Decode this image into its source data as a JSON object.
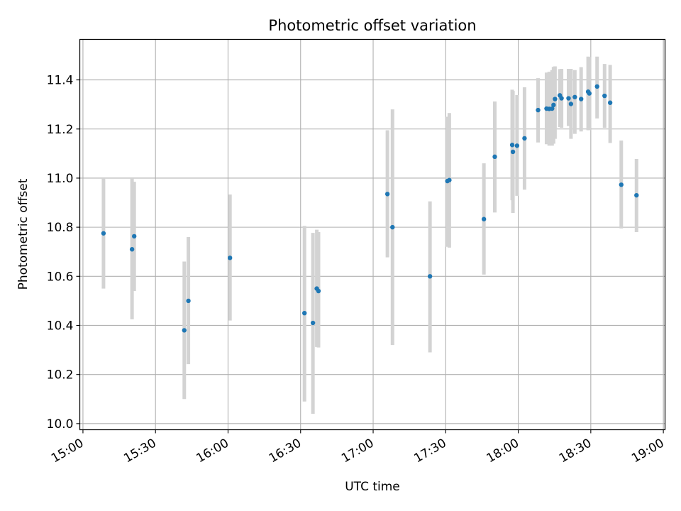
{
  "chart_data": {
    "type": "scatter",
    "title": "Photometric offset variation",
    "xlabel": "UTC time",
    "ylabel": "Photometric offset",
    "xlim_minutes": [
      -1.3,
      240.7
    ],
    "ylim": [
      9.975,
      11.565
    ],
    "x_ticks": [
      {
        "minutes": 0,
        "label": "15:00"
      },
      {
        "minutes": 30,
        "label": "15:30"
      },
      {
        "minutes": 60,
        "label": "16:00"
      },
      {
        "minutes": 90,
        "label": "16:30"
      },
      {
        "minutes": 120,
        "label": "17:00"
      },
      {
        "minutes": 150,
        "label": "17:30"
      },
      {
        "minutes": 180,
        "label": "18:00"
      },
      {
        "minutes": 210,
        "label": "18:30"
      },
      {
        "minutes": 240,
        "label": "19:00"
      }
    ],
    "y_ticks": [
      {
        "value": 10.0,
        "label": "10.0"
      },
      {
        "value": 10.2,
        "label": "10.2"
      },
      {
        "value": 10.4,
        "label": "10.4"
      },
      {
        "value": 10.6,
        "label": "10.6"
      },
      {
        "value": 10.8,
        "label": "10.8"
      },
      {
        "value": 11.0,
        "label": "11.0"
      },
      {
        "value": 11.2,
        "label": "11.2"
      },
      {
        "value": 11.4,
        "label": "11.4"
      }
    ],
    "grid": true,
    "marker_color": "#1f77b4",
    "errorbar_color": "#d3d3d3",
    "points": [
      {
        "t": 8.5,
        "y": 10.775,
        "lo": 10.55,
        "hi": 11.0
      },
      {
        "t": 20.3,
        "y": 10.71,
        "lo": 10.425,
        "hi": 11.0
      },
      {
        "t": 21.2,
        "y": 10.763,
        "lo": 10.54,
        "hi": 10.985
      },
      {
        "t": 41.9,
        "y": 10.38,
        "lo": 10.1,
        "hi": 10.66
      },
      {
        "t": 43.6,
        "y": 10.5,
        "lo": 10.242,
        "hi": 10.76
      },
      {
        "t": 60.8,
        "y": 10.675,
        "lo": 10.42,
        "hi": 10.933
      },
      {
        "t": 91.6,
        "y": 10.45,
        "lo": 10.09,
        "hi": 10.805
      },
      {
        "t": 95.1,
        "y": 10.41,
        "lo": 10.04,
        "hi": 10.777
      },
      {
        "t": 96.7,
        "y": 10.55,
        "lo": 10.312,
        "hi": 10.79
      },
      {
        "t": 97.4,
        "y": 10.54,
        "lo": 10.31,
        "hi": 10.78
      },
      {
        "t": 125.9,
        "y": 10.935,
        "lo": 10.677,
        "hi": 11.195
      },
      {
        "t": 128.0,
        "y": 10.8,
        "lo": 10.32,
        "hi": 11.28
      },
      {
        "t": 143.5,
        "y": 10.6,
        "lo": 10.29,
        "hi": 10.905
      },
      {
        "t": 150.7,
        "y": 10.988,
        "lo": 10.72,
        "hi": 11.25
      },
      {
        "t": 151.5,
        "y": 10.992,
        "lo": 10.717,
        "hi": 11.265
      },
      {
        "t": 165.8,
        "y": 10.833,
        "lo": 10.607,
        "hi": 11.06
      },
      {
        "t": 170.3,
        "y": 11.087,
        "lo": 10.86,
        "hi": 11.312
      },
      {
        "t": 177.5,
        "y": 11.135,
        "lo": 10.91,
        "hi": 11.36
      },
      {
        "t": 177.8,
        "y": 11.107,
        "lo": 10.858,
        "hi": 11.355
      },
      {
        "t": 179.5,
        "y": 11.132,
        "lo": 10.928,
        "hi": 11.338
      },
      {
        "t": 182.6,
        "y": 11.162,
        "lo": 10.953,
        "hi": 11.37
      },
      {
        "t": 188.2,
        "y": 11.277,
        "lo": 11.145,
        "hi": 11.407
      },
      {
        "t": 191.7,
        "y": 11.283,
        "lo": 11.138,
        "hi": 11.43
      },
      {
        "t": 192.8,
        "y": 11.282,
        "lo": 11.132,
        "hi": 11.433
      },
      {
        "t": 194.0,
        "y": 11.283,
        "lo": 11.132,
        "hi": 11.44
      },
      {
        "t": 194.6,
        "y": 11.298,
        "lo": 11.14,
        "hi": 11.453
      },
      {
        "t": 195.2,
        "y": 11.322,
        "lo": 11.16,
        "hi": 11.455
      },
      {
        "t": 197.2,
        "y": 11.337,
        "lo": 11.208,
        "hi": 11.444
      },
      {
        "t": 197.9,
        "y": 11.325,
        "lo": 11.205,
        "hi": 11.445
      },
      {
        "t": 200.8,
        "y": 11.325,
        "lo": 11.212,
        "hi": 11.445
      },
      {
        "t": 201.8,
        "y": 11.302,
        "lo": 11.16,
        "hi": 11.445
      },
      {
        "t": 203.4,
        "y": 11.33,
        "lo": 11.18,
        "hi": 11.44
      },
      {
        "t": 206.0,
        "y": 11.322,
        "lo": 11.19,
        "hi": 11.452
      },
      {
        "t": 208.9,
        "y": 11.352,
        "lo": 11.195,
        "hi": 11.495
      },
      {
        "t": 209.4,
        "y": 11.345,
        "lo": 11.195,
        "hi": 11.493
      },
      {
        "t": 212.6,
        "y": 11.373,
        "lo": 11.243,
        "hi": 11.495
      },
      {
        "t": 215.7,
        "y": 11.335,
        "lo": 11.205,
        "hi": 11.465
      },
      {
        "t": 218.0,
        "y": 11.307,
        "lo": 11.143,
        "hi": 11.461
      },
      {
        "t": 222.6,
        "y": 10.973,
        "lo": 10.795,
        "hi": 11.153
      },
      {
        "t": 228.9,
        "y": 10.93,
        "lo": 10.78,
        "hi": 11.078
      }
    ]
  }
}
